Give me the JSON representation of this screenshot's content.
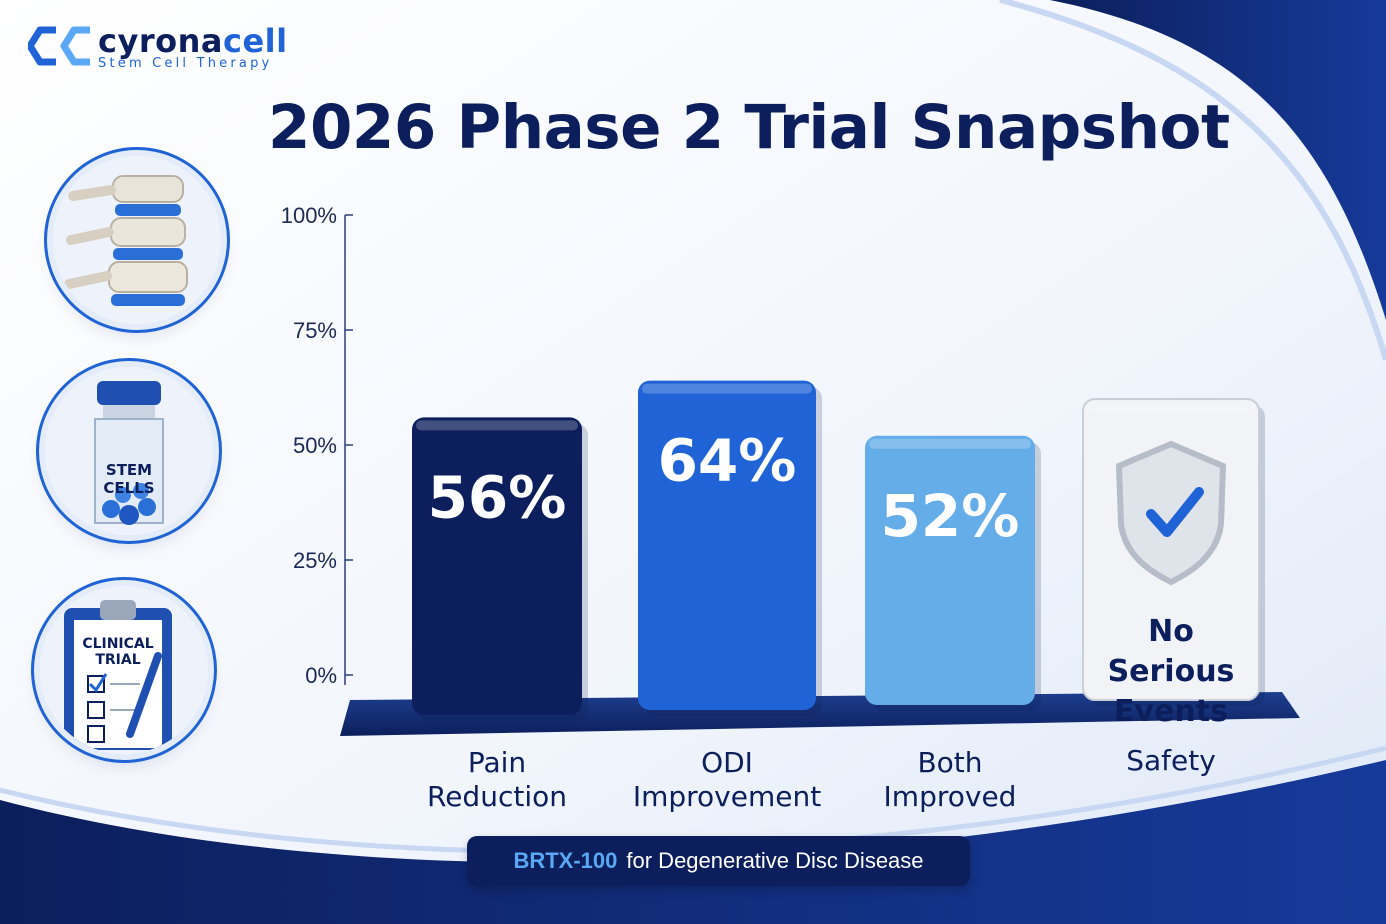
{
  "brand": {
    "name_part1": "cyrona",
    "name_part2": "cell",
    "tagline": "Stem Cell Therapy"
  },
  "title": "2026 Phase 2 Trial Snapshot",
  "side_icons": [
    {
      "name": "spine-icon"
    },
    {
      "name": "vial-icon",
      "label_line1": "STEM",
      "label_line2": "CELLS"
    },
    {
      "name": "clipboard-icon",
      "label_line1": "CLINICAL",
      "label_line2": "TRIAL"
    }
  ],
  "chart_data": {
    "type": "bar",
    "title": "2026 Phase 2 Trial Snapshot",
    "categories": [
      {
        "line1": "Pain",
        "line2": "Reduction"
      },
      {
        "line1": "ODI",
        "line2": "Improvement"
      },
      {
        "line1": "Both",
        "line2": "Improved"
      },
      {
        "line1": "Safety",
        "line2": ""
      }
    ],
    "values": [
      56,
      64,
      52,
      60
    ],
    "value_labels": [
      "56%",
      "64%",
      "52%",
      ""
    ],
    "safety_label": [
      "No",
      "Serious",
      "Events"
    ],
    "bar_colors": [
      "#0c1f5c",
      "#1f63d6",
      "#64ade9",
      "#f1f3f6"
    ],
    "yticks": [
      "100%",
      "75%",
      "50%",
      "25%",
      "0%"
    ],
    "ylim": [
      0,
      100
    ],
    "xlabel": "",
    "ylabel": ""
  },
  "footer": {
    "brand": "BRTX-100",
    "text": "for Degenerative Disc Disease"
  }
}
